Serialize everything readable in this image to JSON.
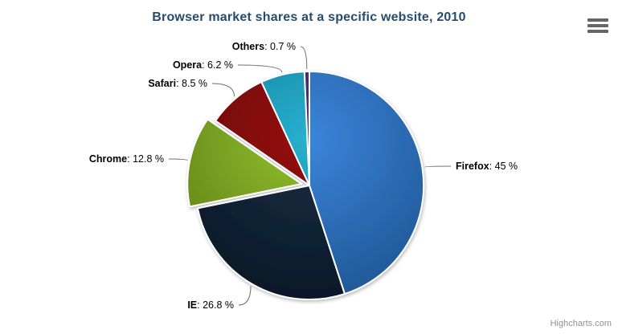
{
  "header": {
    "title": "Browser market shares at a specific website, 2010",
    "title_color": "#274b6d"
  },
  "toolbar": {
    "context_menu_icon": "hamburger-icon"
  },
  "credits": {
    "label": "Highcharts.com",
    "color": "#909090"
  },
  "chart_data": {
    "type": "pie",
    "title": "Browser market shares at a specific website, 2010",
    "legend": "none",
    "label_format": "Name: value %",
    "label_color": "#000000",
    "connector_color": "#6e6e6e",
    "slice_border_color": "#ffffff",
    "slices": [
      {
        "label": "Firefox",
        "value": 45,
        "display_value": "45 %",
        "color": "#2f7ed8",
        "sliced": false
      },
      {
        "label": "IE",
        "value": 26.8,
        "display_value": "26.8 %",
        "color": "#0d233a",
        "sliced": false
      },
      {
        "label": "Chrome",
        "value": 12.8,
        "display_value": "12.8 %",
        "color": "#8bbc21",
        "sliced": true
      },
      {
        "label": "Safari",
        "value": 8.5,
        "display_value": "8.5 %",
        "color": "#910000",
        "sliced": false
      },
      {
        "label": "Opera",
        "value": 6.2,
        "display_value": "6.2 %",
        "color": "#1aadce",
        "sliced": false
      },
      {
        "label": "Others",
        "value": 0.7,
        "display_value": "0.7 %",
        "color": "#492970",
        "sliced": false
      }
    ]
  }
}
